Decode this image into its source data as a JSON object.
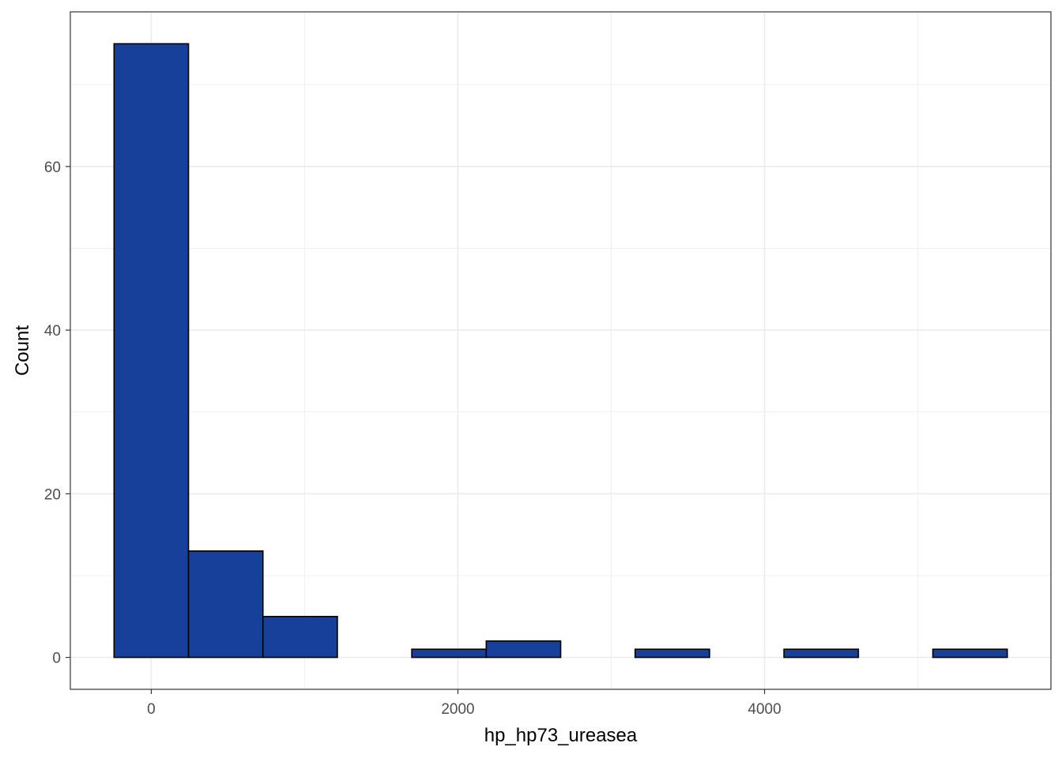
{
  "chart_data": {
    "type": "bar",
    "subtype": "histogram",
    "title": "",
    "xlabel": "hp_hp73_ureasea",
    "ylabel": "Count",
    "bin_width": 485.5,
    "bins": [
      {
        "x_center": 0,
        "count": 75
      },
      {
        "x_center": 485.5,
        "count": 13
      },
      {
        "x_center": 971,
        "count": 5
      },
      {
        "x_center": 1456.5,
        "count": 0
      },
      {
        "x_center": 1942,
        "count": 1
      },
      {
        "x_center": 2427.5,
        "count": 2
      },
      {
        "x_center": 2913,
        "count": 0
      },
      {
        "x_center": 3398.5,
        "count": 1
      },
      {
        "x_center": 3884,
        "count": 0
      },
      {
        "x_center": 4369.5,
        "count": 1
      },
      {
        "x_center": 4855,
        "count": 0
      },
      {
        "x_center": 5340.5,
        "count": 1
      }
    ],
    "xlim": [
      -528,
      5868
    ],
    "ylim": [
      -3.9,
      78.9
    ],
    "x_ticks": [
      0,
      2000,
      4000
    ],
    "x_tick_labels": [
      "0",
      "2000",
      "4000"
    ],
    "y_ticks": [
      0,
      20,
      40,
      60
    ],
    "y_tick_labels": [
      "0",
      "20",
      "40",
      "60"
    ],
    "grid": true,
    "legend": "none",
    "colors": {
      "bar_fill": "#17409A",
      "bar_outline": "#000000",
      "grid": "#EBEBEB",
      "panel_border": "#333333"
    }
  }
}
